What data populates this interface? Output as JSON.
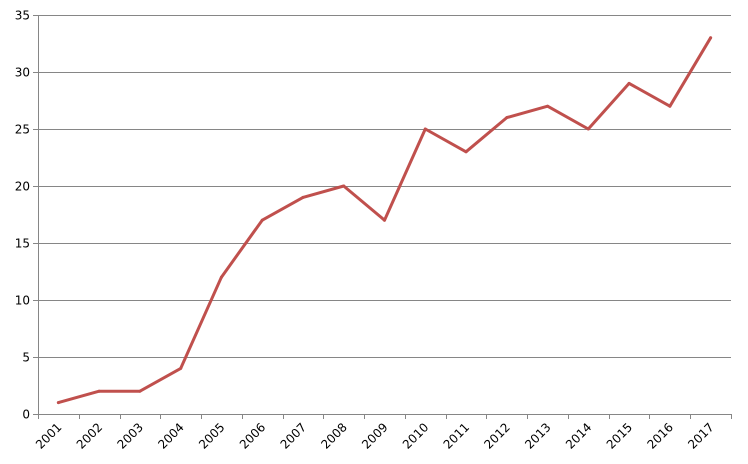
{
  "chart_data": {
    "type": "line",
    "title": "",
    "xlabel": "",
    "ylabel": "",
    "categories": [
      "2001",
      "2002",
      "2003",
      "2004",
      "2005",
      "2006",
      "2007",
      "2008",
      "2009",
      "2010",
      "2011",
      "2012",
      "2013",
      "2014",
      "2015",
      "2016",
      "2017"
    ],
    "series": [
      {
        "values": [
          1,
          2,
          2,
          4,
          12,
          17,
          19,
          20,
          17,
          25,
          23,
          26,
          27,
          25,
          29,
          27,
          33
        ],
        "color": "#C0504D"
      }
    ],
    "ylim": [
      0,
      35
    ],
    "yticks": [
      0,
      5,
      10,
      15,
      20,
      25,
      30,
      35
    ],
    "grid": true,
    "legend": "none"
  }
}
